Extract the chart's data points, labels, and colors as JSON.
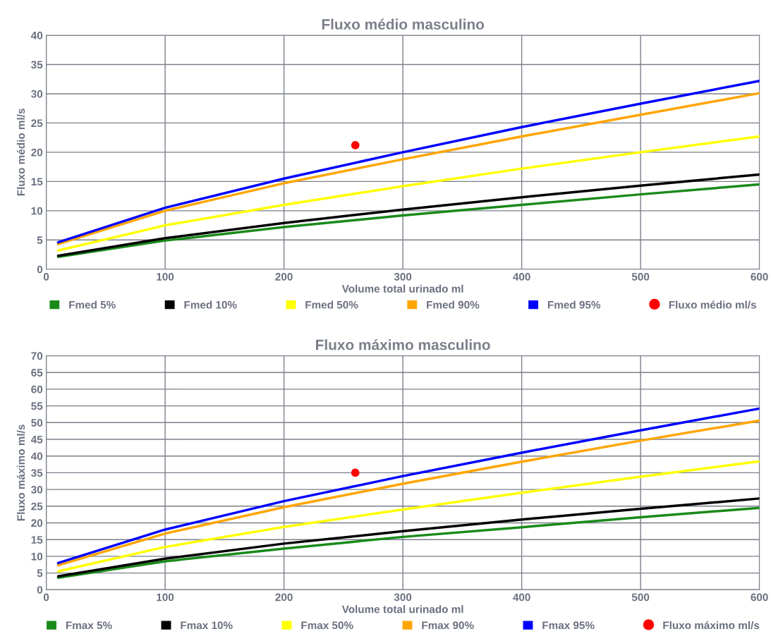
{
  "chart_data": [
    {
      "type": "line",
      "title": "Fluxo médio masculino",
      "xlabel": "Volume total urinado ml",
      "ylabel": "Fluxo médio ml/s",
      "xlim": [
        0,
        600
      ],
      "ylim": [
        0,
        40
      ],
      "xticks": [
        0,
        100,
        200,
        300,
        400,
        500,
        600
      ],
      "yticks": [
        0,
        5,
        10,
        15,
        20,
        25,
        30,
        35,
        40
      ],
      "grid": true,
      "legend": "bottom",
      "x": [
        10,
        100,
        200,
        300,
        400,
        500,
        600
      ],
      "series": [
        {
          "name": "Fmed 5%",
          "color": "#1a8a1a",
          "values": [
            2.1,
            4.9,
            7.2,
            9.2,
            11,
            12.8,
            14.5
          ]
        },
        {
          "name": "Fmed 10%",
          "color": "#000000",
          "values": [
            2.3,
            5.3,
            7.9,
            10.2,
            12.3,
            14.3,
            16.2
          ]
        },
        {
          "name": "Fmed 50%",
          "color": "#ffff00",
          "values": [
            3.2,
            7.5,
            11,
            14.2,
            17.2,
            20,
            22.7
          ]
        },
        {
          "name": "Fmed 90%",
          "color": "#ffa500",
          "values": [
            4.3,
            10,
            14.7,
            18.8,
            22.7,
            26.4,
            30.1
          ]
        },
        {
          "name": "Fmed 95%",
          "color": "#0000ff",
          "values": [
            4.6,
            10.5,
            15.5,
            20,
            24.3,
            28.3,
            32.2
          ]
        },
        {
          "name": "Fluxo médio ml/s",
          "type": "scatter",
          "marker": "circle",
          "color": "#ff0000",
          "x": [
            260
          ],
          "values": [
            21.2
          ]
        }
      ]
    },
    {
      "type": "line",
      "title": "Fluxo máximo masculino",
      "xlabel": "Volume total urinado ml",
      "ylabel": "Fluxo máximo ml/s",
      "xlim": [
        0,
        600
      ],
      "ylim": [
        0,
        70
      ],
      "xticks": [
        0,
        100,
        200,
        300,
        400,
        500,
        600
      ],
      "yticks": [
        0,
        5,
        10,
        15,
        20,
        25,
        30,
        35,
        40,
        45,
        50,
        55,
        60,
        65,
        70
      ],
      "grid": true,
      "legend": "bottom",
      "x": [
        10,
        100,
        200,
        300,
        400,
        500,
        600
      ],
      "series": [
        {
          "name": "Fmax 5%",
          "color": "#1a8a1a",
          "values": [
            3.6,
            8.5,
            12.3,
            15.8,
            18.7,
            21.7,
            24.5
          ]
        },
        {
          "name": "Fmax 10%",
          "color": "#000000",
          "values": [
            4,
            9.3,
            13.8,
            17.5,
            21,
            24.2,
            27.3
          ]
        },
        {
          "name": "Fmax 50%",
          "color": "#ffff00",
          "values": [
            5.5,
            12.8,
            18.8,
            24,
            29,
            33.8,
            38.4
          ]
        },
        {
          "name": "Fmax 90%",
          "color": "#ffa500",
          "values": [
            7.3,
            16.8,
            24.7,
            31.7,
            38.3,
            44.6,
            50.6
          ]
        },
        {
          "name": "Fmax 95%",
          "color": "#0000ff",
          "values": [
            8,
            18,
            26.5,
            34,
            41,
            47.7,
            54.2
          ]
        },
        {
          "name": "Fluxo máximo ml/s",
          "type": "scatter",
          "marker": "circle",
          "color": "#ff0000",
          "x": [
            260
          ],
          "values": [
            35
          ]
        }
      ]
    }
  ]
}
